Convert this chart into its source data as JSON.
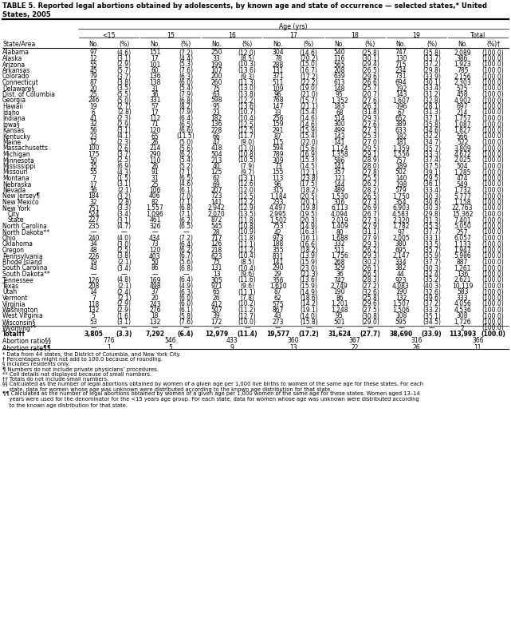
{
  "title": "TABLE 5. Reported legal abortions obtained by adolescents, by known age and state of occurrence — selected states,* United\nStates, 2005",
  "col_groups": [
    "<15",
    "15",
    "16",
    "17",
    "18",
    "19",
    "Total"
  ],
  "rows": [
    [
      "Alabama",
      "97",
      "(4.6)",
      "151",
      "(7.2)",
      "250",
      "(12.0)",
      "304",
      "(14.6)",
      "540",
      "(25.8)",
      "747",
      "(35.8)",
      "2,089",
      "(100.0)"
    ],
    [
      "Alaska",
      "12",
      "(3.1)",
      "17",
      "(4.4)",
      "33",
      "(8.5)",
      "78",
      "(20.2)",
      "116",
      "(30.1)",
      "130",
      "(33.7)",
      "386",
      "(100.0)"
    ],
    [
      "Arizona",
      "55",
      "(2.9)",
      "101",
      "(5.3)",
      "199",
      "(10.3)",
      "288",
      "(15.0)",
      "565",
      "(29.4)",
      "715",
      "(37.2)",
      "1,923",
      "(100.0)"
    ],
    [
      "Arkansas",
      "45",
      "(5.7)",
      "60",
      "(7.6)",
      "107",
      "(13.6)",
      "131",
      "(16.7)",
      "208",
      "(26.5)",
      "234",
      "(29.8)",
      "785",
      "(100.0)"
    ],
    [
      "Colorado",
      "79",
      "(3.7)",
      "136",
      "(6.3)",
      "200",
      "(9.3)",
      "371",
      "(17.2)",
      "639",
      "(29.6)",
      "731",
      "(33.9)",
      "2,156",
      "(100.0)"
    ],
    [
      "Connecticut",
      "87",
      "(3.8)",
      "138",
      "(6.0)",
      "260",
      "(11.3)",
      "511",
      "(22.2)",
      "613",
      "(26.6)",
      "694",
      "(30.1)",
      "2,303",
      "(100.0)"
    ],
    [
      "Delaware§",
      "20",
      "(3.5)",
      "31",
      "(5.4)",
      "75",
      "(13.0)",
      "109",
      "(19.0)",
      "148",
      "(25.7)",
      "192",
      "(33.4)",
      "575",
      "(100.0)"
    ],
    [
      "Dist. of Columbia",
      "25",
      "(5.5)",
      "36",
      "(7.9)",
      "63",
      "(13.8)",
      "96",
      "(21.0)",
      "95",
      "(20.7)",
      "143",
      "(31.2)",
      "458",
      "(100.0)"
    ],
    [
      "Georgia",
      "246",
      "(5.0)",
      "331",
      "(6.8)",
      "598",
      "(12.2)",
      "768",
      "(15.7)",
      "1,352",
      "(27.6)",
      "1,607",
      "(32.8)",
      "4,902",
      "(100.0)"
    ],
    [
      "Hawaii",
      "19",
      "(2.7)",
      "57",
      "(8.2)",
      "95",
      "(13.6)",
      "147",
      "(21.1)",
      "183",
      "(26.3)",
      "196",
      "(28.1)",
      "697",
      "(100.0)"
    ],
    [
      "Idaho",
      "6",
      "(2.8)",
      "17",
      "(7.9)",
      "23",
      "(10.7)",
      "33",
      "(15.4)",
      "68",
      "(31.8)",
      "67",
      "(31.3)",
      "214",
      "(100.0)"
    ],
    [
      "Indiana",
      "41",
      "(2.3)",
      "112",
      "(6.4)",
      "182",
      "(10.4)",
      "256",
      "(14.6)",
      "514",
      "(29.3)",
      "652",
      "(37.1)",
      "1,757",
      "(100.0)"
    ],
    [
      "Iowa§",
      "32",
      "(2.9)",
      "71",
      "(6.5)",
      "136",
      "(12.5)",
      "159",
      "(14.6)",
      "300",
      "(27.6)",
      "389",
      "(35.8)",
      "1,087",
      "(100.0)"
    ],
    [
      "Kansas",
      "56",
      "(3.1)",
      "120",
      "(6.6)",
      "228",
      "(12.5)",
      "291",
      "(15.9)",
      "499",
      "(27.3)",
      "633",
      "(34.6)",
      "1,827",
      "(100.0)"
    ],
    [
      "Kentucky",
      "23",
      "(4.1)",
      "65",
      "(11.5)",
      "66",
      "(11.7)",
      "87",
      "(15.4)",
      "143",
      "(25.3)",
      "182",
      "(32.2)",
      "566",
      "(100.0)"
    ],
    [
      "Maine",
      "12",
      "(2.3)",
      "26",
      "(5.0)",
      "47",
      "(9.0)",
      "115",
      "(22.0)",
      "141",
      "(27.0)",
      "181",
      "(34.7)",
      "522",
      "(100.0)"
    ],
    [
      "Massachusetts",
      "100",
      "(2.6)",
      "214",
      "(5.6)",
      "418",
      "(11.0)",
      "594",
      "(15.6)",
      "1,124",
      "(29.5)",
      "1,359",
      "(35.7)",
      "3,809",
      "(100.0)"
    ],
    [
      "Michigan",
      "175",
      "(3.7)",
      "290",
      "(6.2)",
      "504",
      "(10.8)",
      "789",
      "(16.9)",
      "1,358",
      "(29.1)",
      "1,556",
      "(33.3)",
      "4,672",
      "(100.0)"
    ],
    [
      "Minnesota",
      "50",
      "(2.5)",
      "110",
      "(5.4)",
      "213",
      "(10.5)",
      "309",
      "(15.3)",
      "586",
      "(28.9)",
      "757",
      "(37.4)",
      "2,025",
      "(100.0)"
    ],
    [
      "Mississippi",
      "35",
      "(6.9)",
      "26",
      "(5.2)",
      "40",
      "(7.9)",
      "73",
      "(14.5)",
      "141",
      "(28.0)",
      "189",
      "(37.5)",
      "504",
      "(100.0)"
    ],
    [
      "Missouri",
      "55",
      "(4.3)",
      "91",
      "(7.1)",
      "125",
      "(9.7)",
      "155",
      "(12.1)",
      "357",
      "(27.8)",
      "502",
      "(39.1)",
      "1,285",
      "(100.0)"
    ],
    [
      "Montana",
      "7",
      "(1.5)",
      "31",
      "(6.5)",
      "62",
      "(13.1)",
      "113",
      "(23.8)",
      "121",
      "(25.5)",
      "140",
      "(29.5)",
      "474",
      "(100.0)"
    ],
    [
      "Nebraska",
      "17",
      "(3.1)",
      "25",
      "(4.6)",
      "69",
      "(12.6)",
      "96",
      "(17.5)",
      "144",
      "(26.2)",
      "198",
      "(36.1)",
      "549",
      "(100.0)"
    ],
    [
      "Nevada",
      "36",
      "(2.1)",
      "106",
      "(6.1)",
      "207",
      "(12.0)",
      "315",
      "(18.2)",
      "489",
      "(28.2)",
      "579",
      "(33.4)",
      "1,732",
      "(100.0)"
    ],
    [
      "New Jersey¶",
      "184",
      "(3.2)",
      "406",
      "(7.0)",
      "723",
      "(12.5)",
      "1,184",
      "(20.5)",
      "1,530",
      "(26.5)",
      "1,750",
      "(30.3)",
      "5,777",
      "(100.0)"
    ],
    [
      "New Mexico",
      "32",
      "(2.8)",
      "82",
      "(7.1)",
      "141",
      "(12.2)",
      "233",
      "(20.1)",
      "316",
      "(27.3)",
      "354",
      "(30.6)",
      "1,158",
      "(100.0)"
    ],
    [
      "New York",
      "751",
      "(3.3)",
      "1,557",
      "(6.8)",
      "2,942",
      "(12.9)",
      "4,497",
      "(19.8)",
      "6,113",
      "(26.9)",
      "6,903",
      "(30.3)",
      "22,763",
      "(100.0)"
    ],
    [
      "  City",
      "524",
      "(3.4)",
      "1,096",
      "(7.1)",
      "2,070",
      "(13.5)",
      "2,995",
      "(19.5)",
      "4,094",
      "(26.7)",
      "4,583",
      "(29.8)",
      "15,362",
      "(100.0)"
    ],
    [
      "  State",
      "227",
      "(3.1)",
      "461",
      "(6.2)",
      "872",
      "(11.8)",
      "1,502",
      "(20.3)",
      "2,019",
      "(27.3)",
      "2,320",
      "(31.3)",
      "7,401",
      "(100.0)"
    ],
    [
      "North Carolina",
      "235",
      "(4.7)",
      "326",
      "(6.5)",
      "545",
      "(10.8)",
      "753",
      "(14.9)",
      "1,409",
      "(27.9)",
      "1,782",
      "(35.3)",
      "5,050",
      "(100.0)"
    ],
    [
      "North Dakota**",
      "—",
      "—",
      "—",
      "—",
      "28",
      "(10.9)",
      "42",
      "(16.3)",
      "80",
      "(31.1)",
      "97",
      "(37.7)",
      "257",
      "(100.0)"
    ],
    [
      "Ohio",
      "240",
      "(4.0)",
      "434",
      "(7.2)",
      "717",
      "(11.8)",
      "973",
      "(16.1)",
      "1,688",
      "(27.9)",
      "2,005",
      "(33.1)",
      "6,057",
      "(100.0)"
    ],
    [
      "Oklahoma",
      "34",
      "(3.0)",
      "73",
      "(6.4)",
      "126",
      "(11.1)",
      "188",
      "(16.6)",
      "332",
      "(29.3)",
      "380",
      "(33.5)",
      "1,133",
      "(100.0)"
    ],
    [
      "Oregon",
      "48",
      "(2.5)",
      "120",
      "(6.2)",
      "218",
      "(11.2)",
      "355",
      "(18.2)",
      "511",
      "(26.2)",
      "695",
      "(35.7)",
      "1,947",
      "(100.0)"
    ],
    [
      "Pennsylvania",
      "226",
      "(3.8)",
      "403",
      "(6.7)",
      "623",
      "(10.4)",
      "831",
      "(13.9)",
      "1,756",
      "(29.3)",
      "2,147",
      "(35.9)",
      "5,986",
      "(100.0)"
    ],
    [
      "Rhode Island",
      "19",
      "(2.1)",
      "50",
      "(5.6)",
      "75",
      "(8.5)",
      "141",
      "(15.9)",
      "268",
      "(30.2)",
      "334",
      "(37.7)",
      "887",
      "(100.0)"
    ],
    [
      "South Carolina",
      "43",
      "(3.4)",
      "86",
      "(6.8)",
      "131",
      "(10.4)",
      "290",
      "(23.0)",
      "329",
      "(26.1)",
      "382",
      "(30.3)",
      "1,261",
      "(100.0)"
    ],
    [
      "South Dakota**",
      "—",
      "—",
      "—",
      "—",
      "13",
      "(9.6)",
      "29",
      "(21.3)",
      "36",
      "(26.5)",
      "44",
      "(32.4)",
      "136",
      "(100.0)"
    ],
    [
      "Tennessee",
      "126",
      "(4.8)",
      "169",
      "(6.4)",
      "305",
      "(11.6)",
      "356",
      "(13.6)",
      "742",
      "(28.3)",
      "923",
      "(35.2)",
      "2,621",
      "(100.0)"
    ],
    [
      "Texas",
      "208",
      "(2.1)",
      "498",
      "(4.9)",
      "971",
      "(9.6)",
      "1,610",
      "(15.9)",
      "2,749",
      "(27.2)",
      "4,083",
      "(40.3)",
      "10,119",
      "(100.0)"
    ],
    [
      "Utah",
      "14",
      "(2.4)",
      "37",
      "(6.3)",
      "65",
      "(11.1)",
      "87",
      "(14.9)",
      "190",
      "(32.6)",
      "190",
      "(32.6)",
      "583",
      "(100.0)"
    ],
    [
      "Vermont",
      "7",
      "(2.1)",
      "20",
      "(6.0)",
      "26",
      "(7.8)",
      "62",
      "(18.6)",
      "86",
      "(25.8)",
      "132",
      "(39.6)",
      "333",
      "(100.0)"
    ],
    [
      "Virginia",
      "118",
      "(2.9)",
      "243",
      "(6.0)",
      "412",
      "(10.2)",
      "575",
      "(14.2)",
      "1,201",
      "(29.6)",
      "1,507",
      "(37.2)",
      "4,056",
      "(100.0)"
    ],
    [
      "Washington",
      "132",
      "(2.9)",
      "276",
      "(6.1)",
      "507",
      "(11.2)",
      "867",
      "(19.1)",
      "1,248",
      "(27.5)",
      "1,506",
      "(33.2)",
      "4,536",
      "(100.0)"
    ],
    [
      "West Virginia",
      "5",
      "(1.6)",
      "18",
      "(5.8)",
      "39",
      "(12.7)",
      "43",
      "(14.0)",
      "95",
      "(30.8)",
      "108",
      "(35.1)",
      "308",
      "(100.0)"
    ],
    [
      "Wisconsin§",
      "53",
      "(3.1)",
      "132",
      "(7.6)",
      "172",
      "(10.0)",
      "273",
      "(15.8)",
      "501",
      "(29.0)",
      "595",
      "(34.5)",
      "1,726",
      "(100.0)"
    ],
    [
      "Wyoming**",
      "—",
      "—",
      "—",
      "—",
      "—",
      "—",
      "—",
      "—",
      "—",
      "—",
      "—",
      "—",
      "2",
      "(100.0)"
    ]
  ],
  "total_row": [
    "Total††",
    "3,805",
    "(3.3)",
    "7,292",
    "(6.4)",
    "12,979",
    "(11.4)",
    "19,577",
    "(17.2)",
    "31,624",
    "(27.7)",
    "38,690",
    "(33.9)",
    "113,993",
    "(100.0)"
  ],
  "ratio_row": [
    "Abortion ratio§§",
    "776",
    "546",
    "433",
    "360",
    "367",
    "316",
    "366"
  ],
  "rate_row": [
    "Abortion rate¶¶",
    "1",
    "5",
    "9",
    "13",
    "22",
    "26",
    "11"
  ],
  "footnotes": [
    "* Data from 44 states, the District of Columbia, and New York City.",
    "† Percentages might not add to 100.0 because of rounding.",
    "§ Includes residents only.",
    "¶ Numbers do not include private physicians’ procedures.",
    "** Cell details not displayed because of small numbers.",
    "†† Totals do not include small numbers.",
    "§§ Calculated as the number of legal abortions obtained by women of a given age per 1,000 live births to women of the same age for these states. For each\n    state, data for women whose age was unknown were distributed according to the known age distribution for that state.",
    "¶¶ Calculated as the number of legal abortions obtained by women of a given age per 1,000 women of the same age for these states. Women aged 13–14\n    years were used for the denominator for the <15 years age group. For each state, data for women whose age was unknown were distributed according\n    to the known age distribution for that state."
  ]
}
